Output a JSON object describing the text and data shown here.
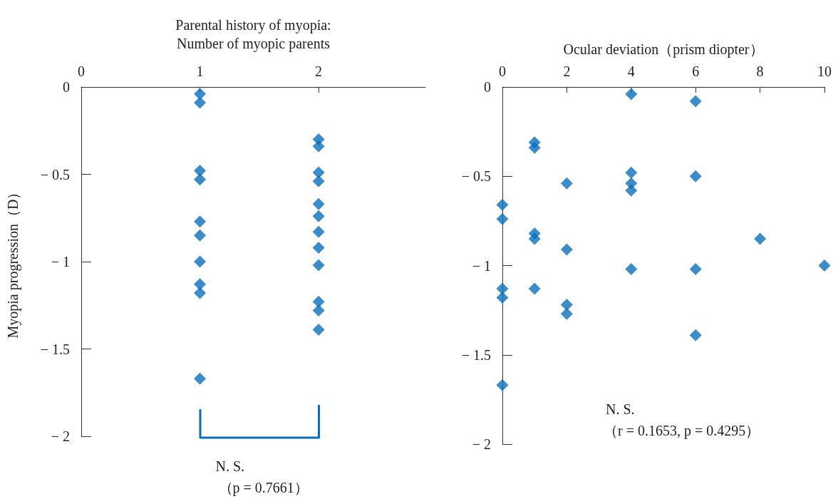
{
  "chart_data": [
    {
      "type": "scatter",
      "xlabel": "Parental history of myopia:\nNumber of myopic parents",
      "ylabel": "Myopia progression（D）",
      "marker": "diamond",
      "color": "#0a6fba",
      "x": [
        1,
        1,
        1,
        1,
        1,
        1,
        1,
        1,
        1,
        1,
        2,
        2,
        2,
        2,
        2,
        2,
        2,
        2,
        2,
        2,
        2,
        2
      ],
      "values": [
        -0.04,
        -0.09,
        -0.48,
        -0.53,
        -0.77,
        -0.85,
        -1.0,
        -1.13,
        -1.18,
        -1.67,
        -0.3,
        -0.34,
        -0.49,
        -0.54,
        -0.67,
        -0.74,
        -0.83,
        -0.92,
        -1.02,
        -1.23,
        -1.28,
        -1.39
      ],
      "xlim": [
        0,
        2.9
      ],
      "xticks": [
        0,
        1,
        2
      ],
      "ylim": [
        -2,
        0
      ],
      "yticks": [
        {
          "value": 0,
          "label": "0"
        },
        {
          "value": -0.5,
          "label": "− 0.5"
        },
        {
          "value": -1,
          "label": "− 1"
        },
        {
          "value": -1.5,
          "label": "− 1.5"
        },
        {
          "value": -2,
          "label": "− 2"
        }
      ],
      "annotations": [
        "N. S.",
        "（p = 0.7661）"
      ]
    },
    {
      "type": "scatter",
      "xlabel": "Ocular deviation（prism diopter）",
      "marker": "diamond",
      "color": "#0a6fba",
      "x": [
        4,
        6,
        1,
        1,
        2,
        4,
        4,
        4,
        6,
        0,
        0,
        1,
        1,
        2,
        8,
        4,
        6,
        10,
        0,
        0,
        1,
        2,
        2,
        6,
        0
      ],
      "values": [
        -0.04,
        -0.08,
        -0.31,
        -0.34,
        -0.54,
        -0.48,
        -0.54,
        -0.58,
        -0.5,
        -0.66,
        -0.74,
        -0.82,
        -0.85,
        -0.91,
        -0.85,
        -1.02,
        -1.02,
        -1.0,
        -1.13,
        -1.18,
        -1.13,
        -1.22,
        -1.27,
        -1.39,
        -1.67
      ],
      "xlim": [
        0,
        10
      ],
      "xticks": [
        0,
        2,
        4,
        6,
        8,
        10
      ],
      "ylim": [
        -2,
        0
      ],
      "yticks": [
        {
          "value": 0,
          "label": "0"
        },
        {
          "value": -0.5,
          "label": "− 0.5"
        },
        {
          "value": -1,
          "label": "− 1"
        },
        {
          "value": -1.5,
          "label": "− 1.5"
        },
        {
          "value": -2,
          "label": "− 2"
        }
      ],
      "annotations": [
        "N. S.",
        "（r = 0.1653, p = 0.4295）"
      ]
    }
  ]
}
